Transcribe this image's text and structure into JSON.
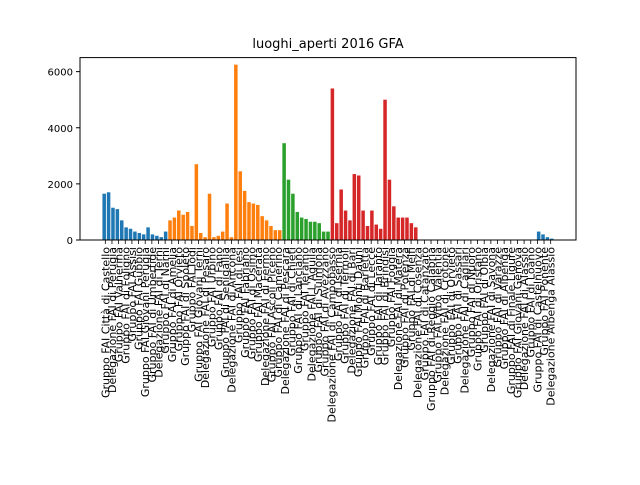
{
  "chart_data": {
    "type": "bar",
    "title": "luoghi_aperti  2016  GFA",
    "xlabel": "",
    "ylabel": "",
    "ylim": [
      0,
      6500
    ],
    "yticks": [
      0,
      2000,
      4000,
      6000
    ],
    "grid": false,
    "legend": "none",
    "colors": {
      "blue": "#1f77b4",
      "orange": "#ff7f0e",
      "green": "#2ca02c",
      "red": "#d62728"
    },
    "x_tick_labels_visible": [
      "Gruppo FAI Città di Castello",
      "Delegazione FAI di Perugia",
      "Gruppo FAI Valnerina",
      "Gruppo FAI di Foligno",
      "Gruppo FAI Assisi",
      "Gruppo FAI Gubbio",
      "Gruppo FAI Giovani Perugia",
      "Gruppo FAI di Umbertide",
      "Delegazione FAI di Terni",
      "Gruppo FAI di Narni",
      "Gruppo FAI di Amelia",
      "Gruppo FAI Orvieto",
      "Gruppo FAI di Spoleto",
      "Gruppo FAI Todi",
      "Gruppo FAI Giovani Terni",
      "Delegazione FAI di Pesaro",
      "Gruppo FAI Urbino",
      "Gruppo FAI di Fano",
      "Gruppo FAI di Senigallia",
      "Delegazione FAI di Ancona",
      "Gruppo FAI di Jesi",
      "Gruppo FAI Fabriano",
      "Gruppo FAI di Osimo",
      "Gruppo FAI Macerata",
      "Delegazione FAI di Fermo",
      "Gruppo FAI Ascoli Piceno",
      "Gruppo FAI di Camerino",
      "Delegazione FAI di Pescara",
      "Gruppo FAI di Chieti",
      "Gruppo FAI di Lanciano",
      "Gruppo FAI Teramo",
      "Delegazione FAI L'Aquila",
      "Gruppo FAI di Sulmona",
      "Gruppo FAI di Avezzano",
      "Delegazione FAI di Campobasso",
      "Gruppo FAI di Isernia",
      "Gruppo FAI di Termoli",
      "Delegazione FAI di Bari",
      "Gruppo FAI Monti Dauni",
      "Gruppo FAI di Barletta",
      "Gruppo FAI di Lecce",
      "Gruppo FAI di Taranto",
      "Gruppo FAI di Brindisi",
      "Gruppo FAI Foggia",
      "Delegazione FAI di Matera",
      "Gruppo FAI di Potenza",
      "Gruppo FAI di Melfi",
      "Delegazione FAI di Cosenza",
      "Gruppo FAI di Catanzaro",
      "Gruppo FAI di Reggio Calabria",
      "Gruppo FAI Vibo Valentia",
      "Delegazione FAI di Crotone",
      "Gruppo FAI di Orvieto",
      "Gruppo FAI di Sassari",
      "Delegazione FAI di Cagliari",
      "Gruppo FAI di Nuoro",
      "Gruppo FAI di Oristano",
      "Gruppo FAI di Olbia",
      "Delegazione FAI di Savona",
      "Gruppo FAI di Varazze",
      "Gruppo FAI di Albenga",
      "Gruppo FAI di Finale Ligure",
      "Gruppo FAI Giovani Genova",
      "Delegazione FAI di Alassio",
      "Gruppo FAI di Loano",
      "Gruppo FAI di Castelnuovo",
      "Gruppo FAI Ponente",
      "Delegazione Albenga Alassio"
    ],
    "series": [
      {
        "color": "blue",
        "values": [
          1650,
          1700,
          1150,
          1100,
          700,
          450,
          400,
          300,
          250,
          200,
          450,
          200,
          150,
          100,
          300
        ]
      },
      {
        "color": "orange",
        "values": [
          700,
          800,
          1050,
          900,
          1000,
          500,
          2700,
          250,
          100,
          1650,
          100,
          150,
          300,
          1300,
          100,
          6250,
          2450,
          1750,
          1350,
          1300,
          1250,
          850,
          700,
          500,
          350,
          350
        ]
      },
      {
        "color": "green",
        "values": [
          3450,
          2150,
          1650,
          1000,
          800,
          750,
          650,
          650,
          600,
          300,
          300
        ]
      },
      {
        "color": "red",
        "values": [
          5400,
          600,
          1800,
          1050,
          700,
          2350,
          2300,
          1050,
          500,
          1050,
          550,
          400,
          5000,
          2150,
          1200,
          800,
          800,
          800,
          600,
          450
        ]
      },
      {
        "color": "blue",
        "values": [
          10,
          10,
          10,
          10,
          10,
          10,
          10,
          10,
          10,
          10,
          10,
          10,
          10,
          10,
          10,
          10,
          10,
          10,
          10,
          10,
          10,
          10,
          10,
          10,
          10,
          10,
          10,
          300,
          200,
          100,
          50
        ]
      }
    ]
  }
}
